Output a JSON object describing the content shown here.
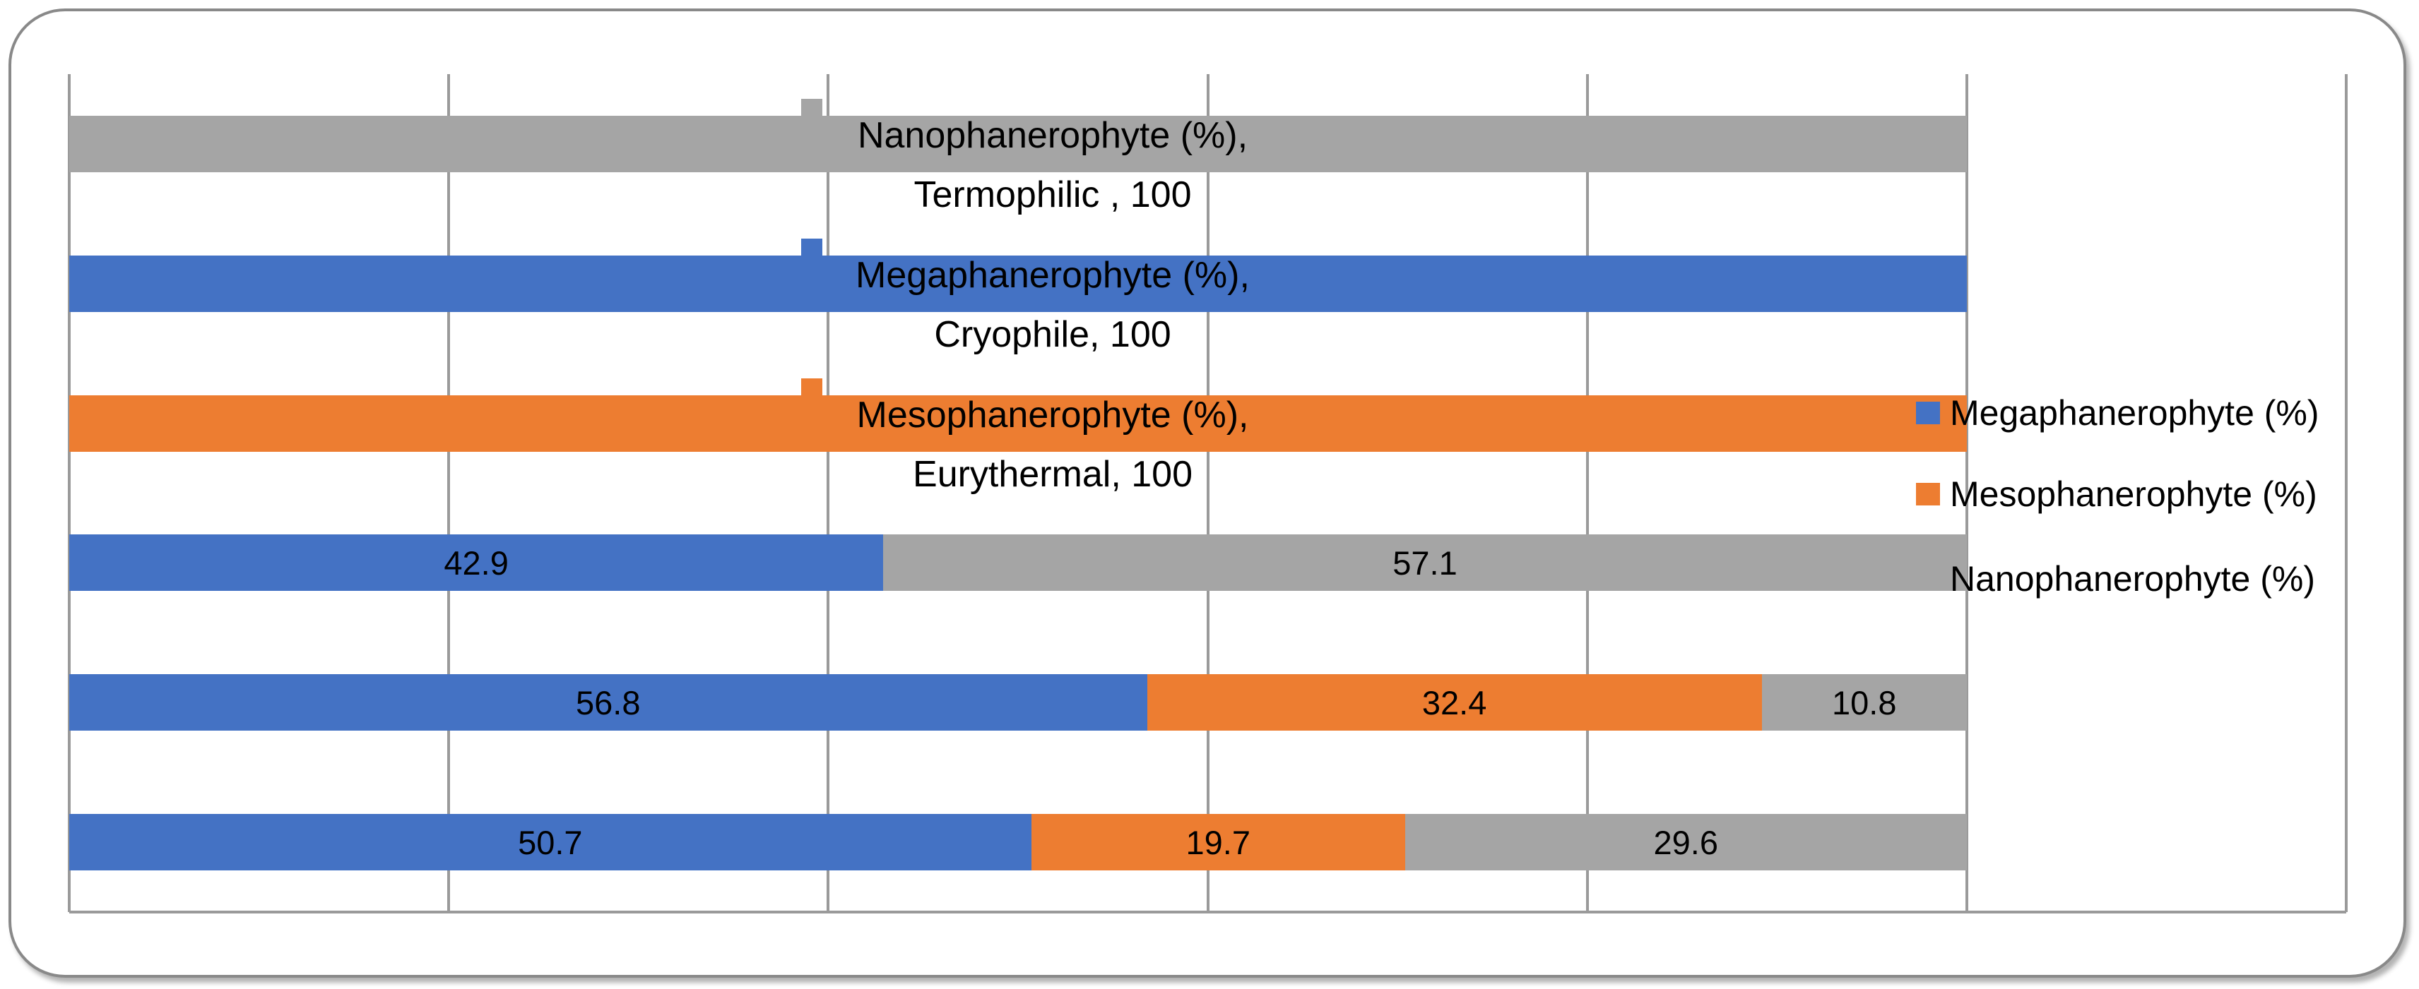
{
  "chart": {
    "title": "",
    "frame_border_color": "#898989",
    "gridline_color": "#9A9A9A",
    "label_text_color": "#000000"
  },
  "legend": {
    "position": "right",
    "items": [
      {
        "label": "Megaphanerophyte (%)",
        "color": "#4472C4"
      },
      {
        "label": "Mesophanerophyte (%)",
        "color": "#ED7D31"
      },
      {
        "label": "Nanophanerophyte (%)",
        "color": "#A5A5A5"
      }
    ]
  },
  "chart_data": {
    "type": "bar",
    "orientation": "horizontal",
    "stacked": true,
    "title": "",
    "xlabel": "",
    "ylabel": "",
    "x_axis": {
      "min": 0,
      "max": 120,
      "gridline_step": 20,
      "tick_labels_visible": false
    },
    "grid": "vertical-only",
    "legend_position": "right",
    "categories": [
      "Termophilic",
      "Cryophile",
      "Eurythermal",
      "",
      "",
      ""
    ],
    "series": [
      {
        "name": "Megaphanerophyte (%)",
        "color": "#4472C4",
        "values": [
          0,
          100,
          0,
          42.9,
          56.8,
          50.7
        ]
      },
      {
        "name": "Mesophanerophyte (%)",
        "color": "#ED7D31",
        "values": [
          0,
          0,
          100,
          0,
          32.4,
          19.7
        ]
      },
      {
        "name": "Nanophanerophyte (%)",
        "color": "#A5A5A5",
        "values": [
          100,
          0,
          0,
          57.1,
          10.8,
          29.6
        ]
      }
    ],
    "rows": [
      {
        "category": "Termophilic",
        "segments": [
          {
            "series": "Nanophanerophyte (%)",
            "value": 100,
            "label": ""
          }
        ],
        "callout": {
          "series": "Nanophanerophyte (%)",
          "lines": [
            "Nanophanerophyte (%),",
            "Termophilic , 100"
          ]
        }
      },
      {
        "category": "Cryophile",
        "segments": [
          {
            "series": "Megaphanerophyte (%)",
            "value": 100,
            "label": ""
          }
        ],
        "callout": {
          "series": "Megaphanerophyte (%)",
          "lines": [
            "Megaphanerophyte (%),",
            "Cryophile, 100"
          ]
        }
      },
      {
        "category": "Eurythermal",
        "segments": [
          {
            "series": "Mesophanerophyte (%)",
            "value": 100,
            "label": ""
          }
        ],
        "callout": {
          "series": "Mesophanerophyte (%)",
          "lines": [
            "Mesophanerophyte (%),",
            "Eurythermal, 100"
          ]
        }
      },
      {
        "category": "",
        "segments": [
          {
            "series": "Megaphanerophyte (%)",
            "value": 42.9,
            "label": "42.9"
          },
          {
            "series": "Nanophanerophyte (%)",
            "value": 57.1,
            "label": "57.1"
          }
        ]
      },
      {
        "category": "",
        "segments": [
          {
            "series": "Megaphanerophyte (%)",
            "value": 56.8,
            "label": "56.8"
          },
          {
            "series": "Mesophanerophyte (%)",
            "value": 32.4,
            "label": "32.4"
          },
          {
            "series": "Nanophanerophyte (%)",
            "value": 10.8,
            "label": "10.8"
          }
        ]
      },
      {
        "category": "",
        "segments": [
          {
            "series": "Megaphanerophyte (%)",
            "value": 50.7,
            "label": "50.7"
          },
          {
            "series": "Mesophanerophyte (%)",
            "value": 19.7,
            "label": "19.7"
          },
          {
            "series": "Nanophanerophyte (%)",
            "value": 29.6,
            "label": "29.6"
          }
        ]
      }
    ]
  }
}
